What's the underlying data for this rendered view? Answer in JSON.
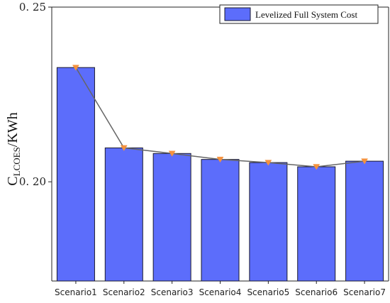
{
  "chart_data": {
    "type": "bar",
    "categories": [
      "Scenario1",
      "Scenario2",
      "Scenario3",
      "Scenario4",
      "Scenario5",
      "Scenario6",
      "Scenario7"
    ],
    "series": [
      {
        "name": "Levelized Full System Cost",
        "values": [
          0.2327,
          0.2097,
          0.2081,
          0.2064,
          0.2055,
          0.2043,
          0.2059
        ]
      }
    ],
    "line_values": [
      0.2327,
      0.2097,
      0.2081,
      0.2064,
      0.2055,
      0.2043,
      0.2059
    ],
    "ylabel_main": "C",
    "ylabel_sub": "LCOES",
    "ylabel_rest": "/KWh",
    "ylim": [
      0.1716,
      0.25
    ],
    "yticks": [
      0.2,
      0.25
    ],
    "ytick_labels": [
      "0. 20",
      "0. 25"
    ],
    "legend_position": "top-right",
    "grid": false,
    "colors": {
      "bar_fill": "#5c6dfb",
      "bar_stroke": "#1a1a2e",
      "line": "#666666",
      "marker": "#f5923e"
    }
  }
}
